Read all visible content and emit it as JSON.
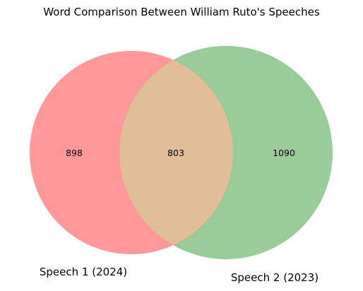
{
  "title": "Word Comparison Between William Ruto's Speeches",
  "sets": [
    {
      "label": "Speech 1 (2024)",
      "color": "#ff0000"
    },
    {
      "label": "Speech 2 (2023)",
      "color": "#008000"
    }
  ],
  "overlap_color": "#e0be9a",
  "counts": {
    "only_a": "898",
    "both": "803",
    "only_b": "1090"
  }
}
